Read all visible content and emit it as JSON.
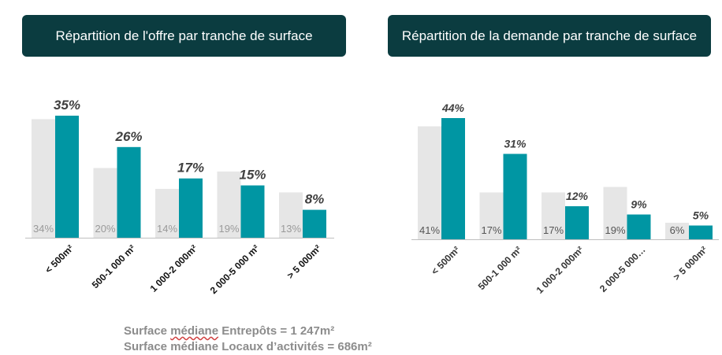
{
  "colors": {
    "teal": "#0096a3",
    "grey": "#e6e6e6",
    "title_bg": "#0b3c40",
    "axis": "#bfbfbf"
  },
  "left_title": "Répartition de l'offre par tranche de surface",
  "right_title": "Répartition de la demande par tranche de surface",
  "footnotes": {
    "line1_prefix": "Surface ",
    "line1_word": "médiane",
    "line1_suffix": " Entrepôts = 1 247m²",
    "line2": "Surface médiane Locaux d’activités = 686m²"
  },
  "chart_data": [
    {
      "type": "bar",
      "title": "Répartition de l'offre par tranche de surface",
      "categories": [
        "< 500m²",
        "500-1 000 m²",
        "1 000-2 000m²",
        "2 000-5 000 m²",
        "> 5 000m²"
      ],
      "series": [
        {
          "values": [
            34,
            20,
            14,
            19,
            13
          ],
          "labels": [
            "34%",
            "20%",
            "14%",
            "19%",
            "13%"
          ],
          "color": "#e6e6e6"
        },
        {
          "values": [
            35,
            26,
            17,
            15,
            8
          ],
          "labels": [
            "35%",
            "26%",
            "17%",
            "15%",
            "8%"
          ],
          "color": "#0096a3"
        }
      ],
      "ylim": [
        0,
        35
      ]
    },
    {
      "type": "bar",
      "title": "Répartition de la demande par tranche de surface",
      "categories": [
        "< 500m²",
        "500-1 000 m²",
        "1 000-2 000m²",
        "2 000-5 000…",
        "> 5 000m²"
      ],
      "series": [
        {
          "values": [
            41,
            17,
            17,
            19,
            6
          ],
          "labels": [
            "41%",
            "17%",
            "17%",
            "19%",
            "6%"
          ],
          "color": "#e6e6e6"
        },
        {
          "values": [
            44,
            31,
            12,
            9,
            5
          ],
          "labels": [
            "44%",
            "31%",
            "12%",
            "9%",
            "5%"
          ],
          "color": "#0096a3"
        }
      ],
      "ylim": [
        0,
        44
      ]
    }
  ]
}
